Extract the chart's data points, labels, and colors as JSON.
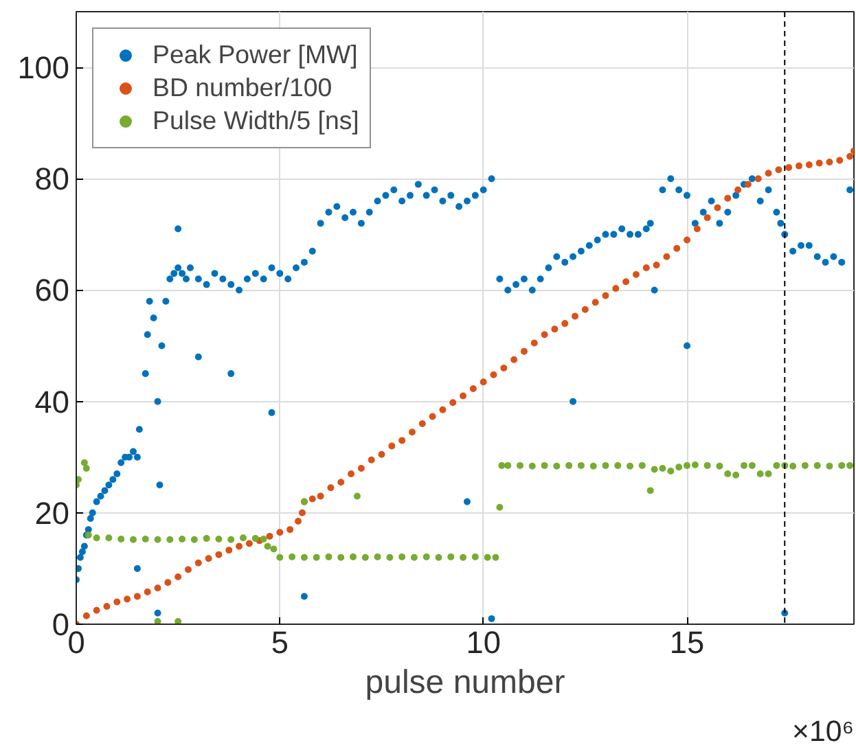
{
  "chart_data": {
    "type": "scatter",
    "xlabel": "pulse number",
    "annotations": [
      "×10⁶"
    ],
    "xlim": [
      0,
      19.1
    ],
    "ylim": [
      0,
      110
    ],
    "xticks": [
      0,
      5,
      10,
      15
    ],
    "yticks": [
      0,
      20,
      40,
      60,
      80,
      100
    ],
    "grid": true,
    "legend": "top left",
    "marker": "circle",
    "ref_lines": [
      {
        "axis": "x",
        "value": 17.4,
        "line_style": "dashed",
        "color": "#000000"
      }
    ],
    "series": [
      {
        "name": "Peak Power [MW]",
        "color": "#0072bd",
        "x": [
          0,
          0.05,
          0.1,
          0.15,
          0.2,
          0.25,
          0.3,
          0.35,
          0.4,
          0.5,
          0.6,
          0.7,
          0.8,
          0.9,
          1.0,
          1.1,
          1.2,
          1.3,
          1.4,
          1.5,
          1.5,
          1.55,
          1.7,
          1.75,
          1.8,
          1.9,
          2.0,
          2.0,
          2.05,
          2.1,
          2.2,
          2.3,
          2.4,
          2.5,
          2.5,
          2.6,
          2.7,
          2.8,
          3.0,
          3.0,
          3.2,
          3.4,
          3.6,
          3.8,
          3.8,
          4.0,
          4.2,
          4.4,
          4.6,
          4.8,
          4.8,
          5.0,
          5.2,
          5.4,
          5.6,
          5.6,
          5.8,
          6.0,
          6.2,
          6.4,
          6.6,
          6.8,
          7.0,
          7.2,
          7.4,
          7.6,
          7.8,
          8.0,
          8.2,
          8.4,
          8.6,
          8.8,
          9.0,
          9.2,
          9.4,
          9.6,
          9.6,
          9.8,
          10.0,
          10.2,
          10.2,
          10.4,
          10.6,
          10.8,
          11.0,
          11.2,
          11.4,
          11.6,
          11.8,
          12.0,
          12.2,
          12.2,
          12.4,
          12.6,
          12.8,
          13.0,
          13.2,
          13.4,
          13.6,
          13.8,
          14.0,
          14.1,
          14.2,
          14.4,
          14.6,
          14.8,
          15.0,
          15.0,
          15.2,
          15.4,
          15.6,
          15.8,
          16.0,
          16.2,
          16.4,
          16.6,
          16.8,
          17.0,
          17.2,
          17.3,
          17.4,
          17.4,
          17.6,
          17.8,
          18.0,
          18.2,
          18.4,
          18.6,
          18.8,
          19.0
        ],
        "values": [
          8,
          10,
          12,
          13,
          14,
          16,
          17,
          19,
          20,
          22,
          23,
          24,
          25,
          26,
          27,
          29,
          30,
          30,
          31,
          30,
          10,
          35,
          45,
          52,
          58,
          55,
          40,
          2,
          25,
          50,
          58,
          62,
          63,
          64,
          71,
          63,
          62,
          64,
          62,
          48,
          61,
          63,
          62,
          61,
          45,
          60,
          62,
          63,
          62,
          64,
          38,
          63,
          62,
          64,
          65,
          5,
          67,
          72,
          74,
          75,
          73,
          74,
          72,
          74,
          76,
          77,
          78,
          76,
          77,
          79,
          77,
          78,
          76,
          77,
          75,
          76,
          22,
          77,
          78,
          80,
          1,
          62,
          60,
          61,
          62,
          60,
          62,
          64,
          66,
          65,
          66,
          40,
          67,
          68,
          69,
          70,
          70,
          71,
          70,
          70,
          71,
          72,
          60,
          78,
          80,
          78,
          77,
          50,
          72,
          74,
          76,
          72,
          74,
          77,
          79,
          80,
          76,
          78,
          74,
          72,
          70,
          2,
          67,
          68,
          68,
          66,
          65,
          66,
          65,
          78
        ]
      },
      {
        "name": "BD number/100",
        "color": "#d95319",
        "x": [
          0,
          0.25,
          0.5,
          0.75,
          1,
          1.25,
          1.5,
          1.75,
          2,
          2.25,
          2.5,
          2.75,
          3,
          3.25,
          3.5,
          3.75,
          4,
          4.25,
          4.5,
          4.75,
          5,
          5.25,
          5.45,
          5.55,
          5.6,
          5.8,
          6,
          6.25,
          6.5,
          6.75,
          7,
          7.25,
          7.5,
          7.75,
          8,
          8.25,
          8.5,
          8.75,
          9,
          9.25,
          9.5,
          9.75,
          10,
          10.25,
          10.5,
          10.75,
          11,
          11.25,
          11.5,
          11.75,
          12,
          12.25,
          12.5,
          12.75,
          13,
          13.25,
          13.5,
          13.75,
          14,
          14.25,
          14.5,
          14.75,
          15,
          15.25,
          15.5,
          15.75,
          16,
          16.25,
          16.5,
          16.75,
          17,
          17.25,
          17.5,
          17.75,
          18,
          18.25,
          18.5,
          18.75,
          19,
          19.1
        ],
        "values": [
          0,
          1.5,
          2.5,
          3.2,
          4,
          4.5,
          5,
          5.8,
          6.5,
          7.5,
          8.5,
          9.8,
          11,
          11.8,
          12.5,
          13.3,
          14,
          14.5,
          15,
          15.8,
          16.5,
          17,
          18.5,
          20,
          22,
          22.5,
          23,
          24.5,
          25.5,
          27,
          28,
          29.5,
          30.5,
          32,
          33,
          34.5,
          36,
          37.3,
          38.5,
          39.8,
          41,
          42.3,
          43.5,
          44.8,
          46,
          47.5,
          49,
          50.5,
          52,
          53,
          54,
          55.3,
          56.5,
          57.8,
          59,
          60.3,
          61.5,
          62.8,
          64,
          64.5,
          66,
          67.5,
          69,
          71,
          73,
          74.8,
          76.5,
          78,
          79,
          80,
          81,
          81.6,
          82,
          82.3,
          82.5,
          82.8,
          83,
          83.3,
          84,
          85
        ]
      },
      {
        "name": "Pulse Width/5 [ns]",
        "color": "#77ac30",
        "x": [
          0,
          0.05,
          0.2,
          0.25,
          0.3,
          0.5,
          0.8,
          1.1,
          1.4,
          1.7,
          2.0,
          2.0,
          2.3,
          2.5,
          2.6,
          2.9,
          3.2,
          3.5,
          3.8,
          4.1,
          4.4,
          4.6,
          4.7,
          4.85,
          5.0,
          5.3,
          5.6,
          5.6,
          5.9,
          6.2,
          6.5,
          6.8,
          6.9,
          7.1,
          7.4,
          7.7,
          8.0,
          8.3,
          8.6,
          8.9,
          9.2,
          9.5,
          9.8,
          10.1,
          10.3,
          10.4,
          10.45,
          10.6,
          10.9,
          11.2,
          11.5,
          11.8,
          12.1,
          12.4,
          12.7,
          13.0,
          13.3,
          13.6,
          13.9,
          14.1,
          14.2,
          14.4,
          14.6,
          14.8,
          15.0,
          15.2,
          15.5,
          15.8,
          16.0,
          16.2,
          16.4,
          16.6,
          16.8,
          17.0,
          17.2,
          17.4,
          17.6,
          17.9,
          18.2,
          18.5,
          18.8,
          19.0
        ],
        "values": [
          25,
          26,
          29,
          28,
          16,
          15.5,
          15.5,
          15.3,
          15.2,
          15.3,
          15.2,
          0.5,
          15.2,
          0.5,
          15.3,
          15.2,
          15.4,
          15.3,
          15.2,
          15.5,
          15.4,
          15.3,
          14,
          13.5,
          12,
          12.1,
          12,
          22,
          12,
          12.1,
          12,
          12.1,
          23,
          12,
          12.1,
          12,
          12.1,
          12,
          12.1,
          12,
          12.1,
          12,
          12.1,
          12,
          12,
          21,
          28.5,
          28.5,
          28.5,
          28.4,
          28.5,
          28.4,
          28.5,
          28.5,
          28.4,
          28.5,
          28.5,
          28.4,
          28.5,
          24,
          27.8,
          28,
          27.5,
          28.2,
          28.5,
          28.6,
          28.5,
          28.4,
          27,
          26.8,
          28.5,
          28.5,
          27,
          27,
          28.5,
          28.5,
          28.4,
          28.5,
          28.5,
          28.4,
          28.5,
          28.5
        ]
      }
    ]
  }
}
